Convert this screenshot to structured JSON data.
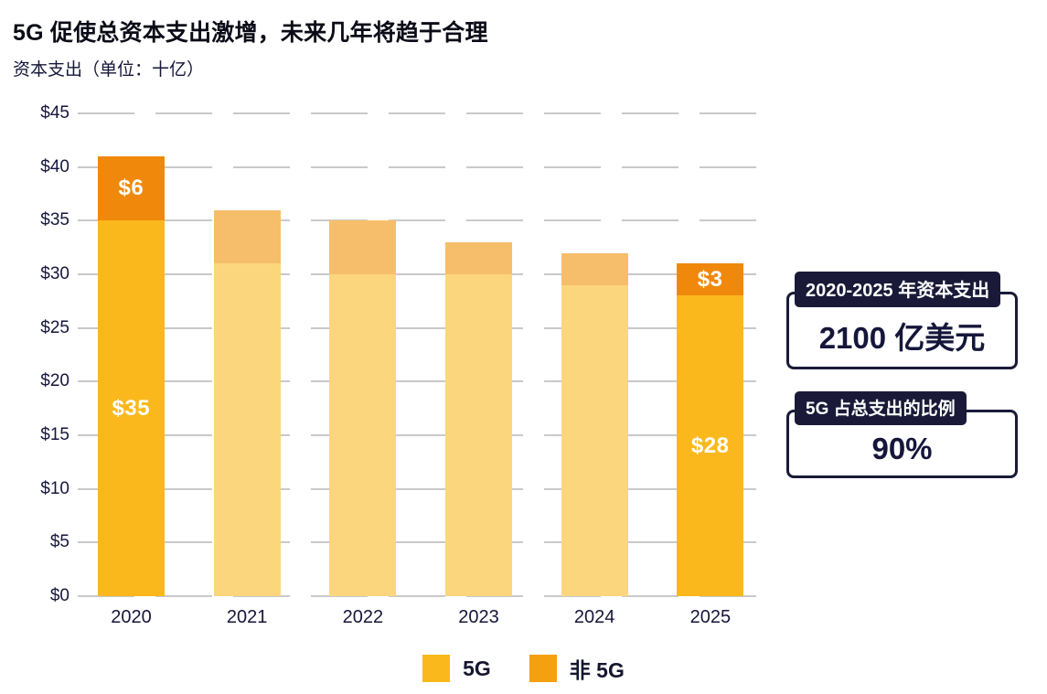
{
  "title": "5G 促使总资本支出激增，未来几年将趋于合理",
  "subtitle": "资本支出（单位：十亿）",
  "colors": {
    "five_g": "#FBB81D",
    "non_five_g": "#F0890B",
    "five_g_faded": "#FCD67D",
    "non_five_g_faded": "#F6BE6A",
    "legend_five_g": "#FBB81D",
    "legend_non_five_g": "#F5A00F",
    "gridline": "#C9C9C9",
    "dark_navy": "#1A1A38",
    "text_dark": "#15163A",
    "bar_label_text": "#FFFFFF"
  },
  "chart_data": {
    "type": "bar",
    "stacked": true,
    "categories": [
      "2020",
      "2021",
      "2022",
      "2023",
      "2024",
      "2025"
    ],
    "series": [
      {
        "name": "5G",
        "values": [
          35,
          31,
          30,
          30,
          29,
          28
        ],
        "labels": [
          "$35",
          "",
          "",
          "",
          "",
          "$28"
        ]
      },
      {
        "name": "非 5G",
        "values": [
          6,
          5,
          5,
          3,
          3,
          3
        ],
        "labels": [
          "$6",
          "",
          "",
          "",
          "",
          "$3"
        ]
      }
    ],
    "emphasized_categories": [
      true,
      false,
      false,
      false,
      false,
      true
    ],
    "totals": [
      41,
      36,
      35,
      33,
      32,
      31
    ],
    "ylim": [
      0,
      45
    ],
    "ytick_step": 5,
    "ytick_labels": [
      "$0",
      "$5",
      "$10",
      "$15",
      "$20",
      "$25",
      "$30",
      "$35",
      "$40",
      "$45"
    ],
    "grid": "dashed-horizontal",
    "legend_position": "bottom",
    "legend": [
      "5G",
      "非 5G"
    ]
  },
  "callouts": [
    {
      "tab": "2020-2025 年资本支出",
      "value": "2100 亿美元"
    },
    {
      "tab": "5G 占总支出的比例",
      "value": "90%"
    }
  ]
}
